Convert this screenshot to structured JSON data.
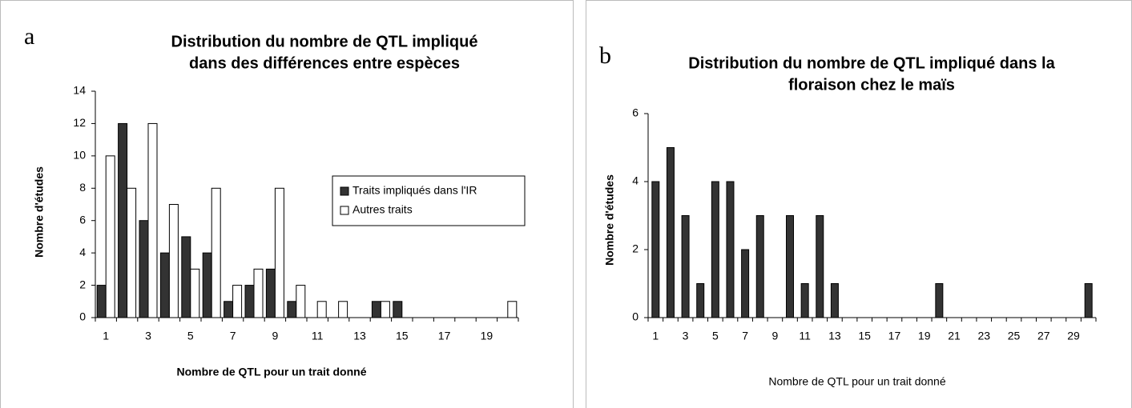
{
  "chart_data": [
    {
      "type": "bar",
      "panel": "a",
      "title": [
        "Distribution du nombre de QTL impliqué",
        "dans des différences entre espèces"
      ],
      "xlabel": "Nombre de QTL pour un trait donné",
      "ylabel": "Nombre d'études",
      "categories": [
        1,
        null,
        3,
        null,
        5,
        null,
        7,
        null,
        9,
        null,
        11,
        null,
        13,
        null,
        15,
        null,
        17,
        null,
        19,
        null
      ],
      "series": [
        {
          "name": "Traits impliqués dans l'IR",
          "color": "#333333",
          "values": [
            2,
            12,
            6,
            4,
            5,
            4,
            1,
            2,
            3,
            1,
            0,
            0,
            0,
            1,
            1,
            0,
            0,
            0,
            0,
            0
          ]
        },
        {
          "name": "Autres traits",
          "color": "#ffffff",
          "values": [
            10,
            8,
            12,
            7,
            3,
            8,
            2,
            3,
            8,
            2,
            1,
            1,
            0,
            1,
            0,
            0,
            0,
            0,
            0,
            1
          ]
        }
      ],
      "ylim": [
        0,
        14
      ],
      "yticks": [
        0,
        2,
        4,
        6,
        8,
        10,
        12,
        14
      ],
      "grid": false,
      "legend": "right"
    },
    {
      "type": "bar",
      "panel": "b",
      "title": [
        "Distribution du nombre de QTL impliqué dans la",
        "floraison chez le maïs"
      ],
      "xlabel": "Nombre de QTL pour un trait donné",
      "ylabel": "Nombre d'études",
      "categories": [
        1,
        null,
        3,
        null,
        5,
        null,
        7,
        null,
        9,
        null,
        11,
        null,
        13,
        null,
        15,
        null,
        17,
        null,
        19,
        null,
        21,
        null,
        23,
        null,
        25,
        null,
        27,
        null,
        29,
        null
      ],
      "values": [
        4,
        5,
        3,
        1,
        4,
        4,
        2,
        3,
        0,
        3,
        1,
        3,
        1,
        0,
        0,
        0,
        0,
        0,
        0,
        1,
        0,
        0,
        0,
        0,
        0,
        0,
        0,
        0,
        0,
        1
      ],
      "color": "#333333",
      "ylim": [
        0,
        6
      ],
      "yticks": [
        0,
        2,
        4,
        6
      ],
      "grid": false
    }
  ]
}
